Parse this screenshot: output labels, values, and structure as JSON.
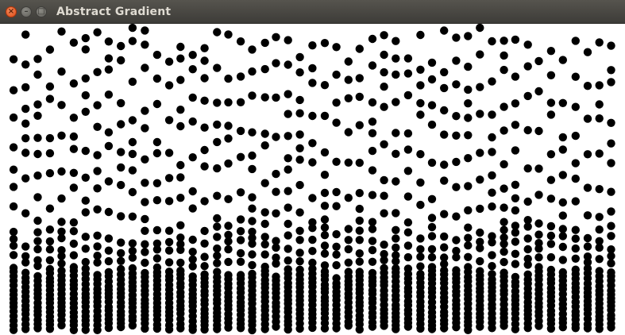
{
  "window": {
    "title": "Abstract Gradient",
    "controls": {
      "close_icon": "close-icon",
      "minimize_icon": "minimize-icon",
      "maximize_icon": "maximize-icon"
    },
    "colors": {
      "titlebar": "#3d3c38",
      "title_text": "#dfdbd2",
      "close_button": "#df4a16",
      "background": "#ffffff",
      "dot": "#000000"
    }
  }
}
